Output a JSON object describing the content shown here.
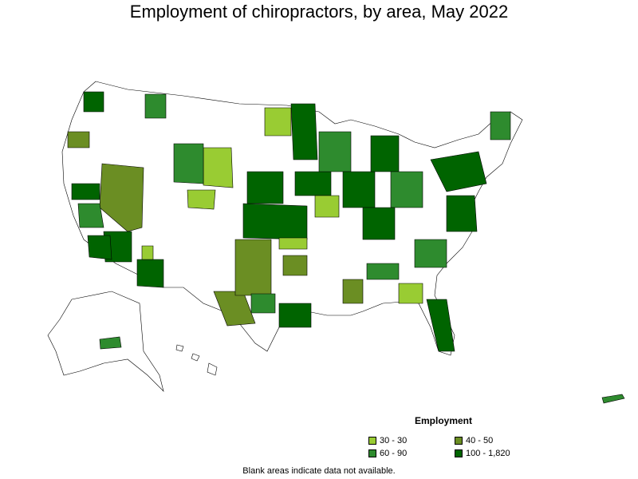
{
  "title": "Employment of chiropractors, by area, May 2022",
  "legend": {
    "title": "Employment",
    "items": [
      {
        "label": "30 - 30",
        "color": "#99cc33"
      },
      {
        "label": "40 - 50",
        "color": "#6b8e23"
      },
      {
        "label": "60 - 90",
        "color": "#2e8b2e"
      },
      {
        "label": "100 - 1,820",
        "color": "#006400"
      }
    ]
  },
  "footnote": "Blank areas indicate data not available.",
  "colors": {
    "outline": "#000000",
    "blank": "#ffffff"
  }
}
